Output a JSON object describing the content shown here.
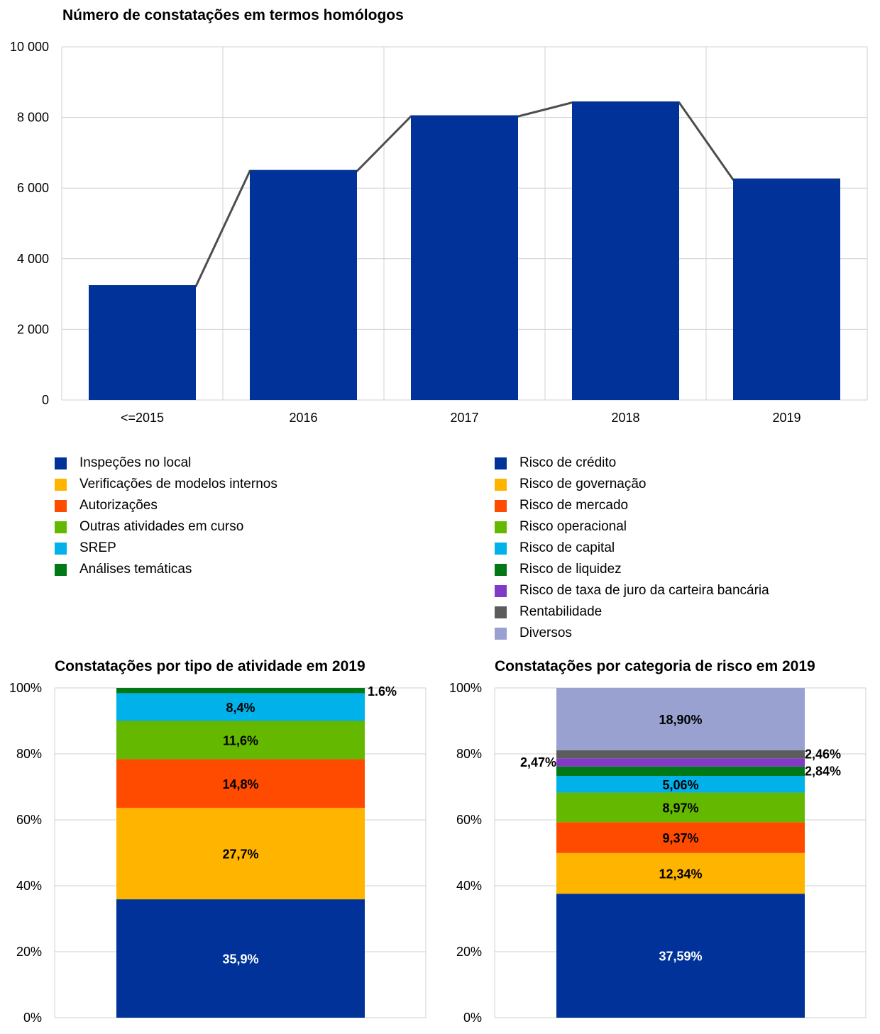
{
  "chart_data": [
    {
      "type": "bar",
      "title": "Número de constatações em termos homólogos",
      "categories": [
        "<=2015",
        "2016",
        "2017",
        "2018",
        "2019"
      ],
      "values": [
        3220,
        6480,
        8030,
        8420,
        6240
      ],
      "yticks": [
        "0",
        "2 000",
        "4 000",
        "6 000",
        "8 000",
        "10 000"
      ],
      "ylim": [
        0,
        10000
      ],
      "grid": true,
      "bar_color": "#003299",
      "line_color": "#4d4d4d",
      "overlay": "step-connector line joining bar tops"
    },
    {
      "type": "bar",
      "stacked": true,
      "title": "Constatações por tipo de atividade em 2019",
      "ylim": [
        0,
        100
      ],
      "yticks": [
        "0%",
        "20%",
        "40%",
        "60%",
        "80%",
        "100%"
      ],
      "segments": [
        {
          "name": "Inspeções no local",
          "value": 35.9,
          "label": "35,9%",
          "color": "#003299",
          "text_color": "#ffffff"
        },
        {
          "name": "Verificações de modelos internos",
          "value": 27.7,
          "label": "27,7%",
          "color": "#ffb400",
          "text_color": "#000000"
        },
        {
          "name": "Autorizações",
          "value": 14.8,
          "label": "14,8%",
          "color": "#ff4b00",
          "text_color": "#000000"
        },
        {
          "name": "Outras atividades em curso",
          "value": 11.6,
          "label": "11,6%",
          "color": "#65b800",
          "text_color": "#000000"
        },
        {
          "name": "SREP",
          "value": 8.4,
          "label": "8,4%",
          "color": "#00b1ea",
          "text_color": "#000000"
        },
        {
          "name": "Análises temáticas",
          "value": 1.6,
          "label": "1.6%",
          "color": "#007816",
          "text_color": "#000000",
          "outside": "right"
        }
      ]
    },
    {
      "type": "bar",
      "stacked": true,
      "title": "Constatações por categoria de risco em 2019",
      "ylim": [
        0,
        100
      ],
      "yticks": [
        "0%",
        "20%",
        "40%",
        "60%",
        "80%",
        "100%"
      ],
      "segments": [
        {
          "name": "Risco de crédito",
          "value": 37.59,
          "label": "37,59%",
          "color": "#003299",
          "text_color": "#ffffff"
        },
        {
          "name": "Risco de governação",
          "value": 12.34,
          "label": "12,34%",
          "color": "#ffb400",
          "text_color": "#000000"
        },
        {
          "name": "Risco de mercado",
          "value": 9.37,
          "label": "9,37%",
          "color": "#ff4b00",
          "text_color": "#000000"
        },
        {
          "name": "Risco operacional",
          "value": 8.97,
          "label": "8,97%",
          "color": "#65b800",
          "text_color": "#000000"
        },
        {
          "name": "Risco de capital",
          "value": 5.06,
          "label": "5,06%",
          "color": "#00b1ea",
          "text_color": "#000000"
        },
        {
          "name": "Risco de liquidez",
          "value": 2.84,
          "label": "2,84%",
          "color": "#007816",
          "text_color": "#000000",
          "outside": "right"
        },
        {
          "name": "Risco de taxa de juro da carteira bancária",
          "value": 2.47,
          "label": "2,47%",
          "color": "#8139c6",
          "text_color": "#000000",
          "outside": "left"
        },
        {
          "name": "Rentabilidade",
          "value": 2.46,
          "label": "2,46%",
          "color": "#5c5c5c",
          "text_color": "#000000",
          "outside": "right"
        },
        {
          "name": "Diversos",
          "value": 18.9,
          "label": "18,90%",
          "color": "#98a1d0",
          "text_color": "#000000"
        }
      ]
    }
  ],
  "legend_activity": [
    {
      "label": "Inspeções no local",
      "color": "#003299"
    },
    {
      "label": "Verificações de modelos internos",
      "color": "#ffb400"
    },
    {
      "label": "Autorizações",
      "color": "#ff4b00"
    },
    {
      "label": "Outras atividades em curso",
      "color": "#65b800"
    },
    {
      "label": "SREP",
      "color": "#00b1ea"
    },
    {
      "label": "Análises temáticas",
      "color": "#007816"
    }
  ],
  "legend_risk": [
    {
      "label": "Risco de crédito",
      "color": "#003299"
    },
    {
      "label": "Risco de governação",
      "color": "#ffb400"
    },
    {
      "label": "Risco de mercado",
      "color": "#ff4b00"
    },
    {
      "label": "Risco operacional",
      "color": "#65b800"
    },
    {
      "label": "Risco de capital",
      "color": "#00b1ea"
    },
    {
      "label": "Risco de liquidez",
      "color": "#007816"
    },
    {
      "label": "Risco de taxa de juro da carteira bancária",
      "color": "#8139c6"
    },
    {
      "label": "Rentabilidade",
      "color": "#5c5c5c"
    },
    {
      "label": "Diversos",
      "color": "#98a1d0"
    }
  ]
}
